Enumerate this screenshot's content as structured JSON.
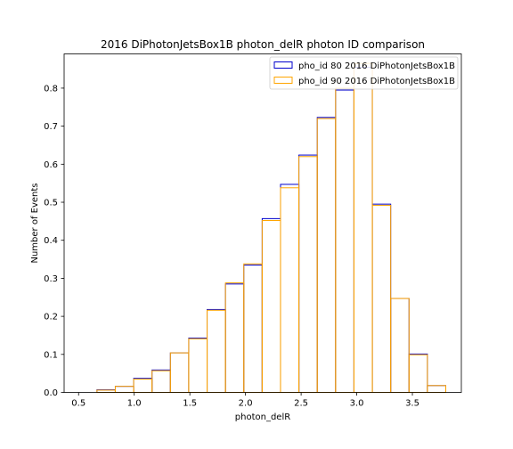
{
  "chart_data": {
    "type": "step-histogram",
    "title": "2016 DiPhotonJetsBox1B photon_delR photon ID comparison",
    "xlabel": "photon_delR",
    "ylabel": "Number of Events",
    "xlim": [
      0.37,
      3.94
    ],
    "ylim": [
      0,
      0.89
    ],
    "xticks": [
      0.5,
      1.0,
      1.5,
      2.0,
      2.5,
      3.0,
      3.5
    ],
    "xtick_labels": [
      "0.5",
      "1.0",
      "1.5",
      "2.0",
      "2.5",
      "3.0",
      "3.5"
    ],
    "yticks": [
      0,
      0.1,
      0.2,
      0.3,
      0.4,
      0.5,
      0.6,
      0.7,
      0.8
    ],
    "ytick_labels": [
      "0.0",
      "0.1",
      "0.2",
      "0.3",
      "0.4",
      "0.5",
      "0.6",
      "0.7",
      "0.8"
    ],
    "bin_edges": [
      0.5,
      0.665,
      0.83,
      0.995,
      1.16,
      1.325,
      1.49,
      1.655,
      1.82,
      1.985,
      2.15,
      2.315,
      2.48,
      2.645,
      2.81,
      2.975,
      3.14,
      3.305,
      3.47,
      3.635,
      3.8
    ],
    "legend_position": "upper-right",
    "grid": false,
    "series": [
      {
        "name": "pho_id 80 2016 DiPhotonJetsBox1B",
        "color": "#0000cd",
        "values": [
          0.0,
          0.007,
          0.016,
          0.037,
          0.059,
          0.104,
          0.143,
          0.218,
          0.285,
          0.335,
          0.457,
          0.547,
          0.624,
          0.723,
          0.795,
          0.855,
          0.495,
          0.247,
          0.101,
          0.018
        ]
      },
      {
        "name": "pho_id 90 2016 DiPhotonJetsBox1B",
        "color": "#ffa500",
        "values": [
          0.0,
          0.006,
          0.016,
          0.035,
          0.057,
          0.104,
          0.141,
          0.216,
          0.288,
          0.338,
          0.452,
          0.538,
          0.62,
          0.72,
          0.8,
          0.865,
          0.492,
          0.247,
          0.099,
          0.018
        ]
      }
    ]
  }
}
